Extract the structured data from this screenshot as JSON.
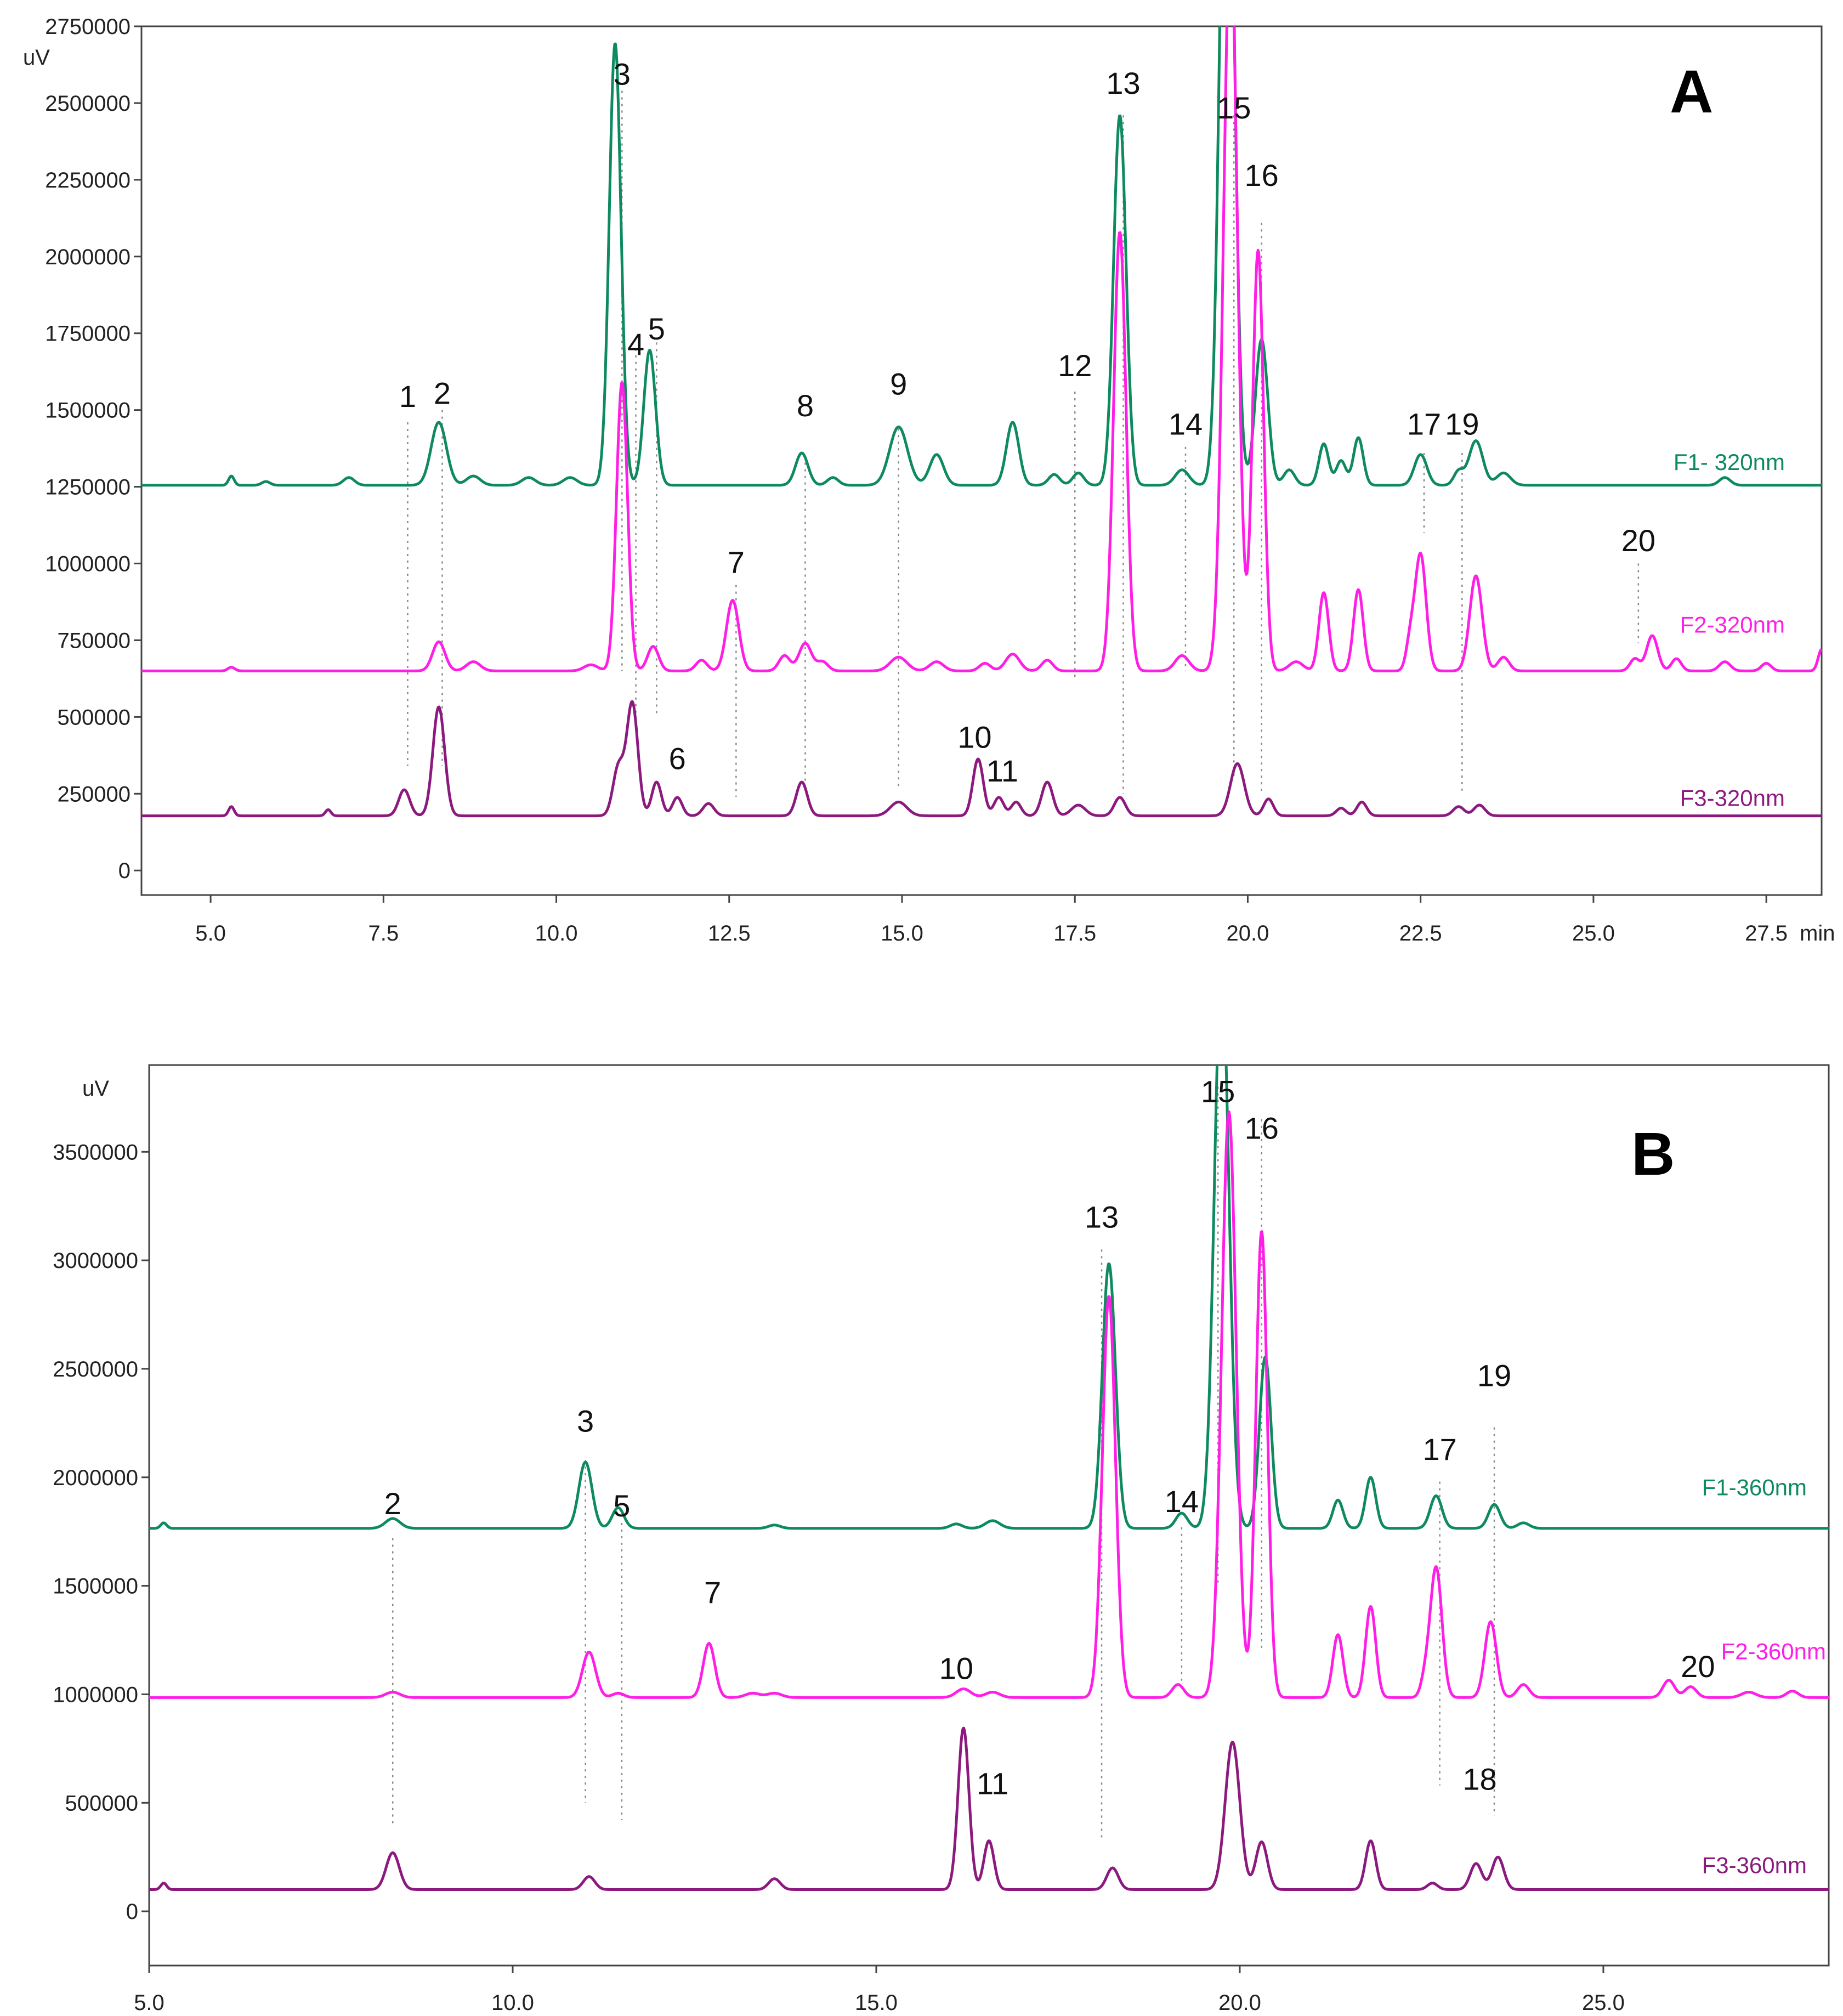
{
  "chart_data": [
    {
      "type": "line",
      "panel_letter": "A",
      "y_unit": "uV",
      "x_unit": "min",
      "xlim": [
        4.0,
        28.3
      ],
      "ylim": [
        -80000,
        2750000
      ],
      "x_ticks": [
        "5.0",
        "7.5",
        "10.0",
        "12.5",
        "15.0",
        "17.5",
        "20.0",
        "22.5",
        "25.0",
        "27.5"
      ],
      "x_tick_values": [
        5.0,
        7.5,
        10.0,
        12.5,
        15.0,
        17.5,
        20.0,
        22.5,
        25.0,
        27.5
      ],
      "y_ticks": [
        "0",
        "250000",
        "500000",
        "750000",
        "1000000",
        "1250000",
        "1500000",
        "1750000",
        "2000000",
        "2250000",
        "2500000",
        "2750000"
      ],
      "y_tick_values": [
        0,
        250000,
        500000,
        750000,
        1000000,
        1250000,
        1500000,
        1750000,
        2000000,
        2250000,
        2500000,
        2750000
      ],
      "series": [
        {
          "name": "F1- 320nm",
          "color": "#0e8a5f",
          "baseline": 1255000,
          "peaks": [
            [
              5.3,
              30000,
              0.04
            ],
            [
              5.8,
              12000,
              0.06
            ],
            [
              7.0,
              25000,
              0.08
            ],
            [
              8.3,
              205000,
              0.11
            ],
            [
              8.8,
              30000,
              0.1
            ],
            [
              9.6,
              25000,
              0.1
            ],
            [
              10.2,
              25000,
              0.1
            ],
            [
              10.85,
              1440000,
              0.085
            ],
            [
              11.35,
              440000,
              0.085
            ],
            [
              13.55,
              105000,
              0.09
            ],
            [
              14.0,
              25000,
              0.08
            ],
            [
              14.95,
              190000,
              0.13
            ],
            [
              15.5,
              100000,
              0.1
            ],
            [
              16.6,
              205000,
              0.09
            ],
            [
              17.2,
              35000,
              0.08
            ],
            [
              17.55,
              40000,
              0.08
            ],
            [
              18.15,
              1205000,
              0.09
            ],
            [
              19.05,
              50000,
              0.1
            ],
            [
              19.7,
              2600000,
              0.1
            ],
            [
              20.2,
              475000,
              0.09
            ],
            [
              20.6,
              50000,
              0.08
            ],
            [
              21.1,
              135000,
              0.07
            ],
            [
              21.35,
              80000,
              0.07
            ],
            [
              21.6,
              155000,
              0.07
            ],
            [
              22.5,
              100000,
              0.09
            ],
            [
              23.05,
              45000,
              0.07
            ],
            [
              23.3,
              145000,
              0.1
            ],
            [
              23.7,
              40000,
              0.1
            ],
            [
              26.9,
              25000,
              0.08
            ]
          ]
        },
        {
          "name": "F2-320nm",
          "color": "#ff1ee6",
          "baseline": 650000,
          "peaks": [
            [
              5.3,
              12000,
              0.05
            ],
            [
              8.3,
              95000,
              0.09
            ],
            [
              8.8,
              30000,
              0.1
            ],
            [
              10.5,
              20000,
              0.1
            ],
            [
              10.95,
              940000,
              0.08
            ],
            [
              11.4,
              80000,
              0.08
            ],
            [
              12.1,
              35000,
              0.08
            ],
            [
              12.55,
              230000,
              0.09
            ],
            [
              13.3,
              50000,
              0.08
            ],
            [
              13.6,
              90000,
              0.09
            ],
            [
              13.85,
              30000,
              0.08
            ],
            [
              14.95,
              45000,
              0.12
            ],
            [
              15.5,
              30000,
              0.1
            ],
            [
              16.2,
              25000,
              0.08
            ],
            [
              16.6,
              55000,
              0.1
            ],
            [
              17.1,
              35000,
              0.08
            ],
            [
              18.15,
              1430000,
              0.09
            ],
            [
              19.05,
              50000,
              0.1
            ],
            [
              19.75,
              2400000,
              0.1
            ],
            [
              20.15,
              1370000,
              0.08
            ],
            [
              20.7,
              30000,
              0.1
            ],
            [
              21.1,
              255000,
              0.07
            ],
            [
              21.6,
              265000,
              0.07
            ],
            [
              22.35,
              90000,
              0.06
            ],
            [
              22.5,
              380000,
              0.08
            ],
            [
              23.3,
              310000,
              0.09
            ],
            [
              23.7,
              45000,
              0.08
            ],
            [
              25.6,
              40000,
              0.07
            ],
            [
              25.85,
              115000,
              0.08
            ],
            [
              26.2,
              40000,
              0.07
            ],
            [
              26.9,
              30000,
              0.08
            ],
            [
              27.5,
              25000,
              0.07
            ],
            [
              28.3,
              70000,
              0.05
            ]
          ]
        },
        {
          "name": "F3-320nm",
          "color": "#8c1a7e",
          "baseline": 178000,
          "peaks": [
            [
              5.3,
              30000,
              0.04
            ],
            [
              6.7,
              20000,
              0.04
            ],
            [
              7.8,
              85000,
              0.08
            ],
            [
              8.3,
              355000,
              0.085
            ],
            [
              10.9,
              160000,
              0.08
            ],
            [
              11.1,
              365000,
              0.08
            ],
            [
              11.45,
              110000,
              0.07
            ],
            [
              11.75,
              60000,
              0.07
            ],
            [
              12.2,
              40000,
              0.08
            ],
            [
              13.55,
              110000,
              0.08
            ],
            [
              14.95,
              45000,
              0.12
            ],
            [
              16.1,
              185000,
              0.075
            ],
            [
              16.4,
              60000,
              0.07
            ],
            [
              16.65,
              45000,
              0.07
            ],
            [
              17.1,
              110000,
              0.08
            ],
            [
              17.55,
              35000,
              0.1
            ],
            [
              18.15,
              60000,
              0.08
            ],
            [
              19.85,
              170000,
              0.1
            ],
            [
              20.3,
              55000,
              0.07
            ],
            [
              21.35,
              25000,
              0.07
            ],
            [
              21.65,
              45000,
              0.07
            ],
            [
              23.05,
              30000,
              0.08
            ],
            [
              23.35,
              35000,
              0.08
            ]
          ]
        }
      ],
      "peak_labels": [
        {
          "text": "1",
          "x": 7.85,
          "y_top": 1460000,
          "y_bottom": 340000,
          "label_y": 1510000
        },
        {
          "text": "2",
          "x": 8.35,
          "y_top": 1500000,
          "y_bottom": 340000,
          "label_y": 1520000
        },
        {
          "text": "3",
          "x": 10.95,
          "y_top": 2540000,
          "y_bottom": 650000,
          "label_y": 2560000
        },
        {
          "text": "4",
          "x": 11.15,
          "y_top": 1700000,
          "y_bottom": 500000,
          "label_y": 1680000
        },
        {
          "text": "5",
          "x": 11.45,
          "y_top": 1720000,
          "y_bottom": 500000,
          "label_y": 1730000
        },
        {
          "text": "6",
          "x": 11.75,
          "y_top": null,
          "y_bottom": null,
          "label_y": 330000
        },
        {
          "text": "7",
          "x": 12.6,
          "y_top": 930000,
          "y_bottom": 240000,
          "label_y": 970000
        },
        {
          "text": "8",
          "x": 13.6,
          "y_top": 1350000,
          "y_bottom": 270000,
          "label_y": 1480000
        },
        {
          "text": "9",
          "x": 14.95,
          "y_top": 1440000,
          "y_bottom": 270000,
          "label_y": 1550000
        },
        {
          "text": "10",
          "x": 16.05,
          "y_top": null,
          "y_bottom": null,
          "label_y": 400000
        },
        {
          "text": "11",
          "x": 16.45,
          "y_top": null,
          "y_bottom": null,
          "label_y": 290000
        },
        {
          "text": "12",
          "x": 17.5,
          "y_top": 1560000,
          "y_bottom": 620000,
          "label_y": 1610000
        },
        {
          "text": "13",
          "x": 18.2,
          "y_top": 2460000,
          "y_bottom": 250000,
          "label_y": 2530000
        },
        {
          "text": "14",
          "x": 19.1,
          "y_top": 1380000,
          "y_bottom": 650000,
          "label_y": 1420000
        },
        {
          "text": "15",
          "x": 19.8,
          "y_top": 2460000,
          "y_bottom": 300000,
          "label_y": 2450000
        },
        {
          "text": "16",
          "x": 20.2,
          "y_top": 2110000,
          "y_bottom": 250000,
          "label_y": 2230000
        },
        {
          "text": "17",
          "x": 22.55,
          "y_top": 1360000,
          "y_bottom": 1100000,
          "label_y": 1420000
        },
        {
          "text": "19",
          "x": 23.1,
          "y_top": 1360000,
          "y_bottom": 260000,
          "label_y": 1420000
        },
        {
          "text": "20",
          "x": 25.65,
          "y_top": 1000000,
          "y_bottom": 740000,
          "label_y": 1040000
        }
      ]
    },
    {
      "type": "line",
      "panel_letter": "B",
      "y_unit": "uV",
      "x_unit": "",
      "xlim": [
        5.0,
        28.1
      ],
      "ylim": [
        -250000,
        3900000
      ],
      "x_ticks": [
        "5.0",
        "10.0",
        "15.0",
        "20.0",
        "25.0"
      ],
      "x_tick_values": [
        5.0,
        10.0,
        15.0,
        20.0,
        25.0
      ],
      "y_ticks": [
        "0",
        "500000",
        "1000000",
        "1500000",
        "2000000",
        "2500000",
        "3000000",
        "3500000"
      ],
      "y_tick_values": [
        0,
        500000,
        1000000,
        1500000,
        2000000,
        2500000,
        3000000,
        3500000
      ],
      "series": [
        {
          "name": "F1-360nm",
          "color": "#0e8a5f",
          "baseline": 1765000,
          "peaks": [
            [
              5.2,
              25000,
              0.04
            ],
            [
              8.35,
              45000,
              0.1
            ],
            [
              11.0,
              305000,
              0.09
            ],
            [
              11.45,
              95000,
              0.08
            ],
            [
              13.6,
              15000,
              0.08
            ],
            [
              16.1,
              20000,
              0.08
            ],
            [
              16.6,
              35000,
              0.1
            ],
            [
              18.2,
              1220000,
              0.09
            ],
            [
              19.2,
              70000,
              0.08
            ],
            [
              19.75,
              2600000,
              0.1
            ],
            [
              20.35,
              790000,
              0.08
            ],
            [
              21.35,
              130000,
              0.07
            ],
            [
              21.8,
              235000,
              0.07
            ],
            [
              22.7,
              150000,
              0.08
            ],
            [
              23.5,
              110000,
              0.08
            ],
            [
              23.9,
              25000,
              0.08
            ]
          ]
        },
        {
          "name": "F2-360nm",
          "color": "#ff1ee6",
          "baseline": 985000,
          "peaks": [
            [
              8.35,
              25000,
              0.1
            ],
            [
              11.05,
              210000,
              0.09
            ],
            [
              11.45,
              20000,
              0.08
            ],
            [
              12.7,
              250000,
              0.08
            ],
            [
              13.3,
              20000,
              0.1
            ],
            [
              13.6,
              20000,
              0.1
            ],
            [
              16.2,
              40000,
              0.1
            ],
            [
              16.6,
              25000,
              0.1
            ],
            [
              18.2,
              1850000,
              0.09
            ],
            [
              19.15,
              60000,
              0.08
            ],
            [
              19.85,
              2700000,
              0.1
            ],
            [
              20.3,
              2150000,
              0.08
            ],
            [
              21.35,
              290000,
              0.07
            ],
            [
              21.8,
              420000,
              0.07
            ],
            [
              22.55,
              80000,
              0.06
            ],
            [
              22.7,
              600000,
              0.08
            ],
            [
              23.45,
              350000,
              0.08
            ],
            [
              23.9,
              60000,
              0.08
            ],
            [
              25.9,
              80000,
              0.08
            ],
            [
              26.2,
              50000,
              0.08
            ],
            [
              27.0,
              25000,
              0.1
            ],
            [
              27.6,
              30000,
              0.08
            ]
          ]
        },
        {
          "name": "F3-360nm",
          "color": "#8c1a7e",
          "baseline": 100000,
          "peaks": [
            [
              5.2,
              30000,
              0.04
            ],
            [
              8.35,
              170000,
              0.09
            ],
            [
              11.05,
              60000,
              0.08
            ],
            [
              13.6,
              50000,
              0.08
            ],
            [
              16.2,
              745000,
              0.075
            ],
            [
              16.55,
              225000,
              0.07
            ],
            [
              18.25,
              100000,
              0.08
            ],
            [
              19.9,
              680000,
              0.1
            ],
            [
              20.3,
              220000,
              0.08
            ],
            [
              21.8,
              225000,
              0.07
            ],
            [
              22.65,
              30000,
              0.07
            ],
            [
              23.25,
              120000,
              0.08
            ],
            [
              23.55,
              150000,
              0.08
            ]
          ]
        }
      ],
      "peak_labels": [
        {
          "text": "2",
          "x": 8.35,
          "y_top": 1720000,
          "y_bottom": 400000,
          "label_y": 1830000
        },
        {
          "text": "3",
          "x": 11.0,
          "y_top": 2080000,
          "y_bottom": 500000,
          "label_y": 2210000
        },
        {
          "text": "5",
          "x": 11.5,
          "y_top": 1790000,
          "y_bottom": 420000,
          "label_y": 1820000
        },
        {
          "text": "7",
          "x": 12.75,
          "y_top": null,
          "y_bottom": null,
          "label_y": 1420000
        },
        {
          "text": "10",
          "x": 16.1,
          "y_top": null,
          "y_bottom": null,
          "label_y": 1070000
        },
        {
          "text": "11",
          "x": 16.6,
          "y_top": null,
          "y_bottom": null,
          "label_y": 540000
        },
        {
          "text": "13",
          "x": 18.1,
          "y_top": 3050000,
          "y_bottom": 340000,
          "label_y": 3150000
        },
        {
          "text": "14",
          "x": 19.2,
          "y_top": 1770000,
          "y_bottom": 1050000,
          "label_y": 1840000
        },
        {
          "text": "15",
          "x": 19.7,
          "y_top": 3800000,
          "y_bottom": 1500000,
          "label_y": 3730000
        },
        {
          "text": "16",
          "x": 20.3,
          "y_top": 3650000,
          "y_bottom": 1200000,
          "label_y": 3560000
        },
        {
          "text": "17",
          "x": 22.75,
          "y_top": 1980000,
          "y_bottom": 580000,
          "label_y": 2080000
        },
        {
          "text": "18",
          "x": 23.3,
          "y_top": null,
          "y_bottom": null,
          "label_y": 560000
        },
        {
          "text": "19",
          "x": 23.5,
          "y_top": 2230000,
          "y_bottom": 440000,
          "label_y": 2420000
        },
        {
          "text": "20",
          "x": 26.3,
          "y_top": null,
          "y_bottom": null,
          "label_y": 1080000
        }
      ]
    }
  ]
}
